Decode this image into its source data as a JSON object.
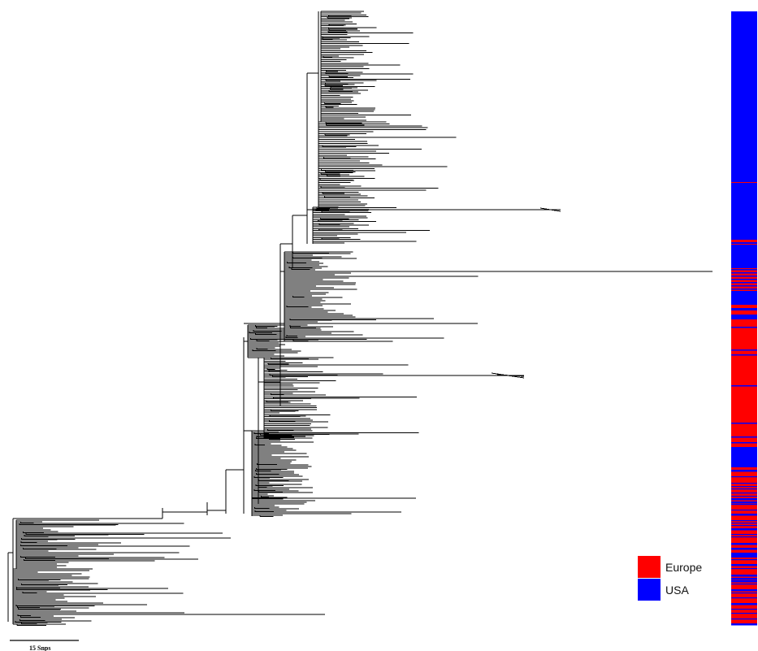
{
  "figure": {
    "kind": "phylogenetic tree with geographic origin color strip",
    "scale_bar": {
      "label": "15 Snps",
      "snps": 15
    },
    "legend": [
      {
        "name": "Europe",
        "color": "#ff0000"
      },
      {
        "name": "USA",
        "color": "#0000ff"
      }
    ],
    "colors": {
      "europe": "#ff0000",
      "usa": "#0000ff",
      "branch": "#000000"
    },
    "origin_strip_summary": [
      {
        "region": "USA",
        "share": 0.355
      },
      {
        "region": "mixed Europe/USA",
        "share": 0.1
      },
      {
        "region": "Europe",
        "share": 0.195
      },
      {
        "region": "USA",
        "share": 0.04
      },
      {
        "region": "mixed Europe/USA",
        "share": 0.31
      }
    ]
  }
}
